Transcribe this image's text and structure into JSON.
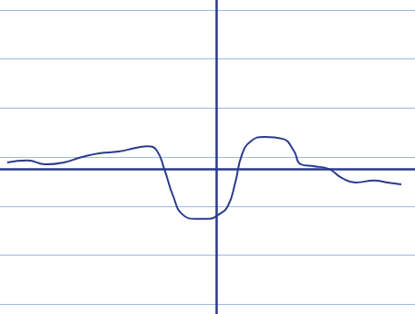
{
  "chart_data": {
    "type": "line",
    "color": "#2a3a8c",
    "line_style": "solid",
    "marker": "none",
    "x": [
      -11.6,
      -10.48,
      -9.47,
      -8.46,
      -7.45,
      -6.44,
      -5.43,
      -4.42,
      -3.81,
      -3.31,
      -2.9,
      -2.4,
      -1.89,
      -1.13,
      -0.47,
      0.13,
      0.64,
      1.04,
      1.4,
      1.9,
      2.66,
      3.67,
      4.28,
      4.68,
      5.44,
      6.2,
      6.96,
      7.71,
      8.73,
      9.48,
      10.24
    ],
    "values": [
      0.14,
      0.18,
      0.1,
      0.14,
      0.25,
      0.33,
      0.36,
      0.44,
      0.47,
      0.38,
      0.01,
      -0.55,
      -0.92,
      -1.01,
      -1.01,
      -0.92,
      -0.74,
      -0.27,
      0.29,
      0.57,
      0.66,
      0.62,
      0.38,
      0.1,
      0.06,
      0.01,
      -0.18,
      -0.27,
      -0.23,
      -0.27,
      -0.31
    ],
    "xlim": [
      -12,
      11
    ],
    "ylim": [
      -2.95,
      3.45
    ],
    "yticks": [
      -2.75,
      -1.75,
      -0.75,
      0.25,
      1.25,
      2.25,
      3.25
    ],
    "grid": true,
    "tick_labels": false
  }
}
